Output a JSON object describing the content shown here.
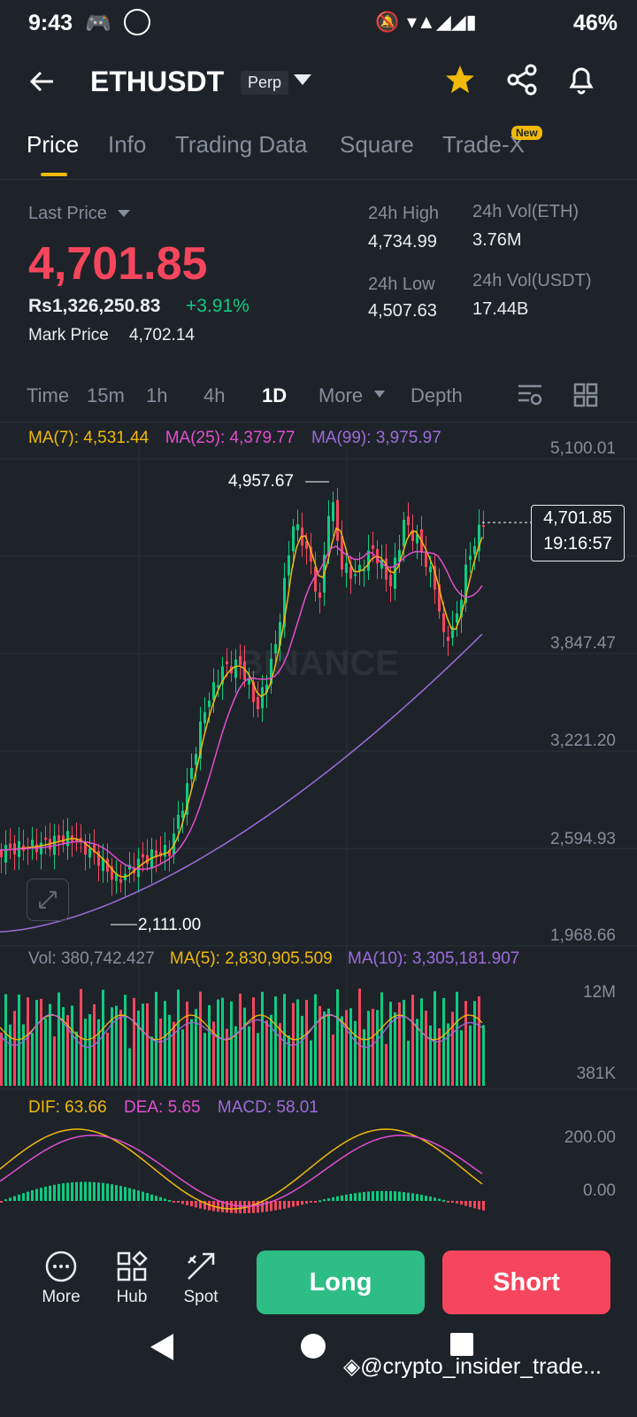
{
  "status": {
    "time": "9:43",
    "battery": "46%"
  },
  "header": {
    "symbol": "ETHUSDT",
    "badge": "Perp"
  },
  "tabs": [
    {
      "label": "Price"
    },
    {
      "label": "Info"
    },
    {
      "label": "Trading Data"
    },
    {
      "label": "Square"
    },
    {
      "label": "Trade-X"
    }
  ],
  "new_badge": "New",
  "ticker": {
    "last_price_label": "Last Price",
    "last_price": "4,701.85",
    "inr_price": "Rs1,326,250.83",
    "change": "+3.91%",
    "mark_label": "Mark Price",
    "mark_price": "4,702.14",
    "high_label": "24h High",
    "high": "4,734.99",
    "low_label": "24h Low",
    "low": "4,507.63",
    "vol_eth_label": "24h Vol(ETH)",
    "vol_eth": "3.76M",
    "vol_usdt_label": "24h Vol(USDT)",
    "vol_usdt": "17.44B"
  },
  "timeframes": [
    {
      "label": "Time"
    },
    {
      "label": "15m"
    },
    {
      "label": "1h"
    },
    {
      "label": "4h"
    },
    {
      "label": "1D"
    },
    {
      "label": "More"
    },
    {
      "label": "Depth"
    }
  ],
  "ma": {
    "ma7": "MA(7): 4,531.44",
    "ma25": "MA(25): 4,379.77",
    "ma99": "MA(99): 3,975.97"
  },
  "chart_data": {
    "type": "candlestick",
    "y_ticks": [
      "5,100.01",
      "3,847.47",
      "3,221.20",
      "2,594.93",
      "1,968.66"
    ],
    "ylim": [
      1968.66,
      5100.01
    ],
    "high_label": "4,957.67",
    "low_label": "2,111.00",
    "current_price": "4,701.85",
    "countdown": "19:16:57",
    "watermark": "BINANCE"
  },
  "volume": {
    "vol": "Vol: 380,742.427",
    "ma5": "MA(5): 2,830,905.509",
    "ma10": "MA(10): 3,305,181.907",
    "top": "12M",
    "bottom": "381K"
  },
  "macd": {
    "dif": "DIF: 63.66",
    "dea": "DEA: 5.65",
    "macd": "MACD: 58.01",
    "top": "200.00",
    "zero": "0.00"
  },
  "bottom": {
    "more": "More",
    "hub": "Hub",
    "spot": "Spot",
    "long": "Long",
    "short": "Short"
  },
  "watermark_footer": "@crypto_insider_trade...",
  "colors": {
    "up": "#0ecb81",
    "down": "#f6465d",
    "accent": "#f0b90b",
    "ma25": "#e14ed1",
    "ma99": "#9c6cdc"
  }
}
